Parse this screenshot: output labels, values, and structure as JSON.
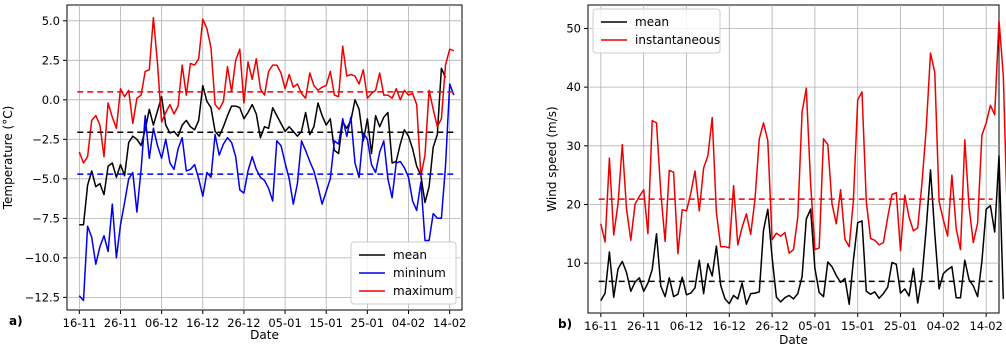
{
  "figure": {
    "panels": [
      "a)",
      "b)"
    ]
  },
  "chart_data": [
    {
      "type": "line",
      "panel_label": "a)",
      "xlabel": "Date",
      "ylabel": "Temperature (°C)",
      "ylim": [
        -13.3,
        6.0
      ],
      "yticks": [
        5.0,
        2.5,
        0.0,
        -2.5,
        -5.0,
        -7.5,
        -10.0,
        -12.5
      ],
      "ytick_labels": [
        "5.0",
        "2.5",
        "0.0",
        "−2.5",
        "−5.0",
        "−7.5",
        "−10.0",
        "−12.5"
      ],
      "xlim": [
        -3,
        93
      ],
      "xticks": [
        0,
        10,
        20,
        30,
        40,
        50,
        60,
        70,
        80,
        90
      ],
      "xtick_labels": [
        "16-11",
        "26-11",
        "06-12",
        "16-12",
        "26-12",
        "05-01",
        "15-01",
        "25-01",
        "04-02",
        "14-02"
      ],
      "grid": true,
      "legend_position": "lower-right",
      "colors": {
        "mean": "#000000",
        "min": "#0000ee",
        "max": "#ee0000"
      },
      "series": [
        {
          "name": "mean",
          "color": "#000000",
          "values": [
            -7.9,
            -7.9,
            -5.4,
            -4.5,
            -5.5,
            -5.3,
            -6.0,
            -4.2,
            -4.0,
            -4.9,
            -4.1,
            -4.8,
            -2.7,
            -2.3,
            -2.5,
            -2.9,
            -1.9,
            -0.6,
            -1.6,
            -0.7,
            0.2,
            -1.6,
            -2.1,
            -2.0,
            -2.3,
            -1.6,
            -1.3,
            -1.7,
            -1.9,
            -1.3,
            0.9,
            -0.1,
            -0.5,
            -2.0,
            -2.3,
            -1.7,
            -1.0,
            -0.4,
            -0.4,
            -0.5,
            -1.2,
            -0.8,
            -0.3,
            -0.9,
            -2.4,
            -1.7,
            -1.8,
            -0.5,
            -1.0,
            -1.5,
            -2.0,
            -1.7,
            -2.0,
            -2.3,
            -2.0,
            -0.8,
            -2.2,
            -1.7,
            -0.2,
            -1.0,
            -1.6,
            -1.2,
            -3.2,
            -3.4,
            -1.4,
            -1.8,
            -1.3,
            0.0,
            -0.6,
            -2.6,
            -1.2,
            -3.4,
            -1.0,
            -1.7,
            -1.1,
            -0.8,
            -4.0,
            -3.9,
            -2.8,
            -1.9,
            -2.3,
            -3.1,
            -4.2,
            -4.8,
            -6.5,
            -5.5,
            -3.0,
            -2.2,
            2.0,
            1.4
          ]
        },
        {
          "name": "mininum",
          "color": "#0000ee",
          "values": [
            -12.4,
            -12.7,
            -8.0,
            -8.7,
            -10.4,
            -9.3,
            -8.6,
            -9.6,
            -6.6,
            -10.0,
            -7.9,
            -6.5,
            -5.0,
            -4.6,
            -7.1,
            -4.4,
            -1.0,
            -3.7,
            -1.8,
            -2.9,
            -3.7,
            -2.5,
            -4.0,
            -4.4,
            -3.1,
            -2.4,
            -4.5,
            -4.4,
            -4.1,
            -5.0,
            -6.1,
            -4.6,
            -4.9,
            -2.2,
            -3.5,
            -2.8,
            -2.4,
            -2.7,
            -3.6,
            -5.7,
            -5.9,
            -4.5,
            -3.6,
            -4.4,
            -4.9,
            -5.1,
            -5.6,
            -6.4,
            -2.6,
            -2.9,
            -4.0,
            -5.0,
            -6.6,
            -5.3,
            -2.6,
            -3.2,
            -3.9,
            -4.5,
            -5.5,
            -6.6,
            -5.8,
            -5.0,
            -2.6,
            -2.8,
            -1.2,
            -2.3,
            -1.1,
            -4.0,
            -4.9,
            -2.1,
            -2.5,
            -4.1,
            -4.6,
            -3.3,
            -2.6,
            -5.0,
            -6.2,
            -4.0,
            -3.9,
            -4.3,
            -4.9,
            -6.4,
            -7.0,
            -5.2,
            -8.9,
            -8.9,
            -7.2,
            -7.5,
            -7.5,
            -4.2,
            1.0,
            0.3
          ]
        },
        {
          "name": "maximum",
          "color": "#ee0000",
          "values": [
            -3.3,
            -4.0,
            -3.6,
            -1.3,
            -1.0,
            -1.6,
            -3.6,
            -0.2,
            -1.1,
            -1.8,
            0.7,
            0.2,
            0.6,
            -1.5,
            0.1,
            0.3,
            1.8,
            1.9,
            5.2,
            2.3,
            -1.4,
            -0.8,
            -0.3,
            -0.9,
            -0.4,
            2.2,
            0.3,
            2.3,
            2.2,
            2.6,
            5.1,
            4.5,
            3.3,
            -0.3,
            -0.6,
            -0.1,
            2.1,
            0.5,
            2.5,
            3.2,
            -0.2,
            2.4,
            1.3,
            2.6,
            0.7,
            0.3,
            1.8,
            2.2,
            2.2,
            1.7,
            0.7,
            1.6,
            0.8,
            1.0,
            0.4,
            0.1,
            1.7,
            0.9,
            0.6,
            0.8,
            0.9,
            1.8,
            0.3,
            0.2,
            3.4,
            1.5,
            1.6,
            1.5,
            1.0,
            1.9,
            0.1,
            0.4,
            0.6,
            1.7,
            0.3,
            0.3,
            0.1,
            0.7,
            0.0,
            0.6,
            0.3,
            0.4,
            -0.3,
            -4.8,
            -3.5,
            0.6,
            -0.6,
            -1.7,
            -1.2,
            2.2,
            3.2,
            3.1
          ]
        },
        {
          "name": "mean_avg",
          "color": "#000000",
          "dashed": true,
          "values": [
            -2.05
          ]
        },
        {
          "name": "min_avg",
          "color": "#0000ee",
          "dashed": true,
          "values": [
            -4.7
          ]
        },
        {
          "name": "max_avg",
          "color": "#ee0000",
          "dashed": true,
          "values": [
            0.5
          ]
        }
      ],
      "legend": [
        "mean",
        "mininum",
        "maximum"
      ]
    },
    {
      "type": "line",
      "panel_label": "b)",
      "xlabel": "Date",
      "ylabel": "Wind speed (m/s)",
      "ylim": [
        1.5,
        54.0
      ],
      "yticks": [
        10,
        20,
        30,
        40,
        50
      ],
      "ytick_labels": [
        "10",
        "20",
        "30",
        "40",
        "50"
      ],
      "xlim": [
        -3,
        93
      ],
      "xticks": [
        0,
        10,
        20,
        30,
        40,
        50,
        60,
        70,
        80,
        90
      ],
      "xtick_labels": [
        "16-11",
        "26-11",
        "06-12",
        "16-12",
        "26-12",
        "05-01",
        "15-01",
        "25-01",
        "04-02",
        "14-02"
      ],
      "grid": true,
      "legend_position": "upper-left",
      "colors": {
        "mean": "#000000",
        "instantaneous": "#ee0000"
      },
      "series": [
        {
          "name": "mean",
          "color": "#000000",
          "values": [
            3.6,
            4.9,
            11.9,
            4.2,
            9.0,
            10.3,
            8.4,
            5.2,
            6.8,
            7.5,
            5.2,
            6.6,
            8.9,
            15.0,
            6.1,
            4.3,
            7.5,
            4.3,
            4.7,
            7.6,
            4.6,
            4.9,
            5.8,
            10.5,
            4.8,
            9.9,
            7.8,
            12.9,
            6.2,
            3.9,
            3.1,
            4.5,
            3.9,
            6.6,
            3.0,
            4.8,
            4.9,
            5.1,
            15.6,
            19.2,
            11.0,
            4.2,
            3.4,
            4.1,
            4.5,
            3.9,
            4.8,
            7.7,
            17.5,
            19.2,
            9.1,
            5.0,
            4.3,
            10.2,
            9.4,
            7.9,
            6.7,
            7.4,
            3.0,
            10.5,
            16.9,
            17.2,
            5.2,
            4.7,
            5.1,
            4.0,
            4.8,
            5.9,
            10.1,
            9.8,
            4.9,
            5.6,
            4.4,
            9.1,
            3.2,
            7.5,
            15.9,
            25.9,
            15.0,
            5.6,
            8.2,
            8.9,
            9.4,
            4.1,
            4.1,
            10.5,
            7.2,
            6.1,
            4.3,
            10.3,
            19.2,
            19.8,
            15.3,
            28.3,
            3.9
          ]
        },
        {
          "name": "instantaneous",
          "color": "#ee0000",
          "values": [
            16.7,
            13.6,
            27.9,
            14.8,
            20.1,
            30.2,
            19.3,
            13.9,
            20.1,
            21.4,
            22.5,
            15.0,
            34.3,
            33.9,
            22.0,
            13.7,
            25.8,
            25.5,
            11.6,
            19.1,
            18.9,
            21.9,
            25.7,
            18.9,
            26.2,
            28.3,
            34.8,
            18.6,
            12.8,
            12.8,
            12.6,
            23.2,
            13.1,
            16.1,
            18.4,
            14.9,
            20.9,
            31.2,
            33.9,
            30.9,
            14.0,
            15.1,
            14.6,
            15.2,
            11.7,
            12.3,
            17.9,
            35.8,
            39.8,
            23.6,
            12.3,
            12.6,
            31.2,
            30.2,
            20.1,
            16.7,
            22.5,
            14.1,
            12.8,
            20.7,
            37.8,
            39.2,
            20.5,
            14.2,
            13.9,
            13.1,
            13.5,
            17.8,
            21.7,
            22.0,
            12.1,
            21.6,
            17.8,
            15.5,
            16.0,
            23.5,
            32.9,
            45.8,
            42.5,
            20.5,
            17.4,
            14.6,
            25.0,
            15.9,
            12.3,
            31.0,
            19.7,
            13.5,
            16.8,
            31.8,
            33.9,
            36.9,
            35.3,
            51.4,
            42.0,
            16.1
          ]
        },
        {
          "name": "mean_avg",
          "color": "#000000",
          "dashed": true,
          "values": [
            6.9
          ]
        },
        {
          "name": "instantaneous_avg",
          "color": "#ee0000",
          "dashed": true,
          "values": [
            20.9
          ]
        }
      ],
      "legend": [
        "mean",
        "instantaneous"
      ]
    }
  ]
}
